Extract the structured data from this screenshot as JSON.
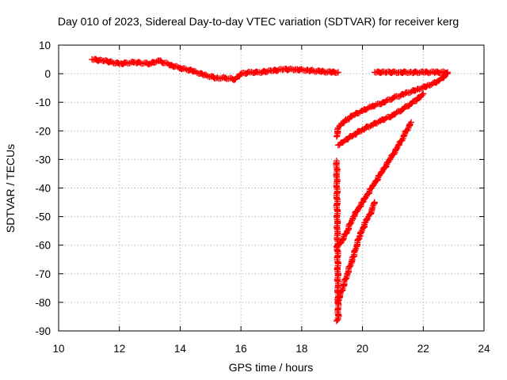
{
  "chart_data": {
    "type": "scatter",
    "title": "Day 010 of 2023, Sidereal Day-to-day VTEC variation (SDTVAR) for receiver kerg",
    "xlabel": "GPS time / hours",
    "ylabel": "SDTVAR / TECUs",
    "xlim": [
      10,
      24
    ],
    "ylim": [
      -90,
      10
    ],
    "x_ticks": [
      10,
      12,
      14,
      16,
      18,
      20,
      22,
      24
    ],
    "y_ticks": [
      10,
      0,
      -10,
      -20,
      -30,
      -40,
      -50,
      -60,
      -70,
      -80,
      -90
    ],
    "grid": true,
    "marker": "+",
    "color": "#ff0000",
    "series": [
      {
        "x": [
          11.1,
          11.5,
          12.0,
          12.5,
          13.0,
          13.3,
          13.7,
          14.0,
          14.4,
          14.8,
          15.2,
          15.5,
          15.8,
          16.0,
          16.3,
          16.6,
          17.0,
          17.4,
          17.8,
          18.2,
          18.6,
          19.0,
          19.2
        ],
        "y": [
          5,
          4.5,
          3.5,
          4,
          3.5,
          4.5,
          3,
          2,
          1,
          -0.5,
          -1.5,
          -1.5,
          -2,
          0,
          0.5,
          0.5,
          1,
          1.5,
          1.5,
          1.2,
          0.8,
          0.5,
          0.5
        ]
      },
      {
        "x": [
          20.4,
          20.8,
          21.2,
          21.6,
          22.0,
          22.4,
          22.8
        ],
        "y": [
          0.5,
          0.5,
          0.5,
          0.5,
          0.5,
          0.5,
          0.5
        ]
      },
      {
        "x": [
          19.15,
          19.2,
          19.3,
          19.5,
          19.7,
          20.0,
          20.3,
          20.7,
          21.0,
          21.4,
          21.8,
          22.2,
          22.5,
          22.8
        ],
        "y": [
          -22,
          -19,
          -17.5,
          -16,
          -14.5,
          -13,
          -11.5,
          -10,
          -8.5,
          -7,
          -5.5,
          -4,
          -2.5,
          0
        ]
      },
      {
        "x": [
          19.2,
          19.4,
          19.7,
          20.0,
          20.3,
          20.6,
          21.0,
          21.3,
          21.6,
          21.8,
          22.0
        ],
        "y": [
          -25,
          -23.5,
          -21.5,
          -19.5,
          -18,
          -16.5,
          -14.5,
          -12.5,
          -10.5,
          -9,
          -7
        ]
      },
      {
        "x": [
          19.15,
          19.3,
          19.5,
          19.7,
          20.0,
          20.3,
          20.6,
          20.9,
          21.2,
          21.4,
          21.6
        ],
        "y": [
          -60.5,
          -59,
          -55,
          -50,
          -45,
          -40,
          -35,
          -30,
          -25,
          -21,
          -17
        ]
      },
      {
        "x": [
          19.2,
          19.35,
          19.5,
          19.7,
          19.9,
          20.1,
          20.3,
          20.4
        ],
        "y": [
          -79.5,
          -75,
          -70,
          -64,
          -57,
          -52,
          -48,
          -45
        ]
      },
      {
        "x": [
          19.15,
          19.2,
          19.15
        ],
        "y": [
          -86.5,
          -85.5,
          -30.5
        ]
      }
    ]
  }
}
